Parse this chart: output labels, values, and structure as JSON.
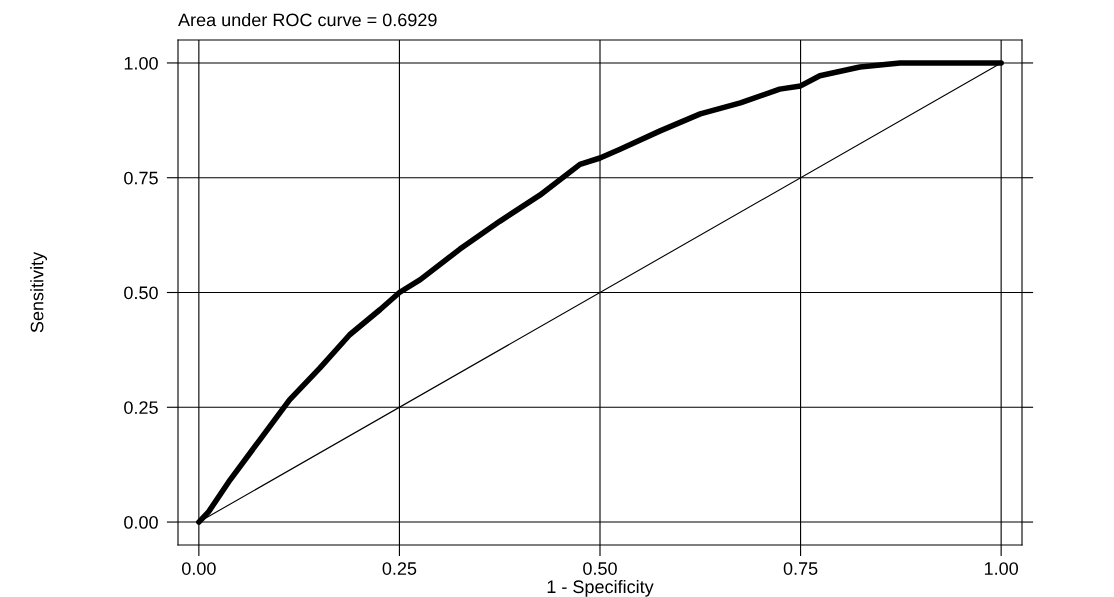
{
  "chart_data": {
    "type": "line",
    "title": "Area under ROC curve = 0.6929",
    "xlabel": "1 - Specificity",
    "ylabel": "Sensitivity",
    "xlim": [
      -0.026,
      1.026
    ],
    "ylim": [
      -0.05,
      1.05
    ],
    "xticks": [
      {
        "value": 0,
        "label": "0.00"
      },
      {
        "value": 0.25,
        "label": "0.25"
      },
      {
        "value": 0.5,
        "label": "0.50"
      },
      {
        "value": 0.75,
        "label": "0.75"
      },
      {
        "value": 1,
        "label": "1.00"
      }
    ],
    "yticks": [
      {
        "value": 0,
        "label": "0.00"
      },
      {
        "value": 0.25,
        "label": "0.25"
      },
      {
        "value": 0.5,
        "label": "0.50"
      },
      {
        "value": 0.75,
        "label": "0.75"
      },
      {
        "value": 1,
        "label": "1.00"
      }
    ],
    "grid": true,
    "marker": "none",
    "series": [
      {
        "color": "#000000",
        "line_style": "solid",
        "x": [
          0,
          0.012,
          0.039,
          0.076,
          0.113,
          0.151,
          0.188,
          0.226,
          0.25,
          0.276,
          0.325,
          0.375,
          0.425,
          0.475,
          0.5,
          0.525,
          0.575,
          0.625,
          0.675,
          0.724,
          0.75,
          0.774,
          0.824,
          0.874,
          1
        ],
        "values": [
          0,
          0.022,
          0.092,
          0.179,
          0.266,
          0.336,
          0.408,
          0.463,
          0.5,
          0.528,
          0.594,
          0.655,
          0.712,
          0.779,
          0.793,
          0.812,
          0.852,
          0.889,
          0.913,
          0.943,
          0.95,
          0.972,
          0.991,
          1.0,
          1.0
        ]
      },
      {
        "color": "#000000",
        "line_style": "solid",
        "x": [
          0,
          1
        ],
        "values": [
          0,
          1
        ]
      }
    ]
  }
}
